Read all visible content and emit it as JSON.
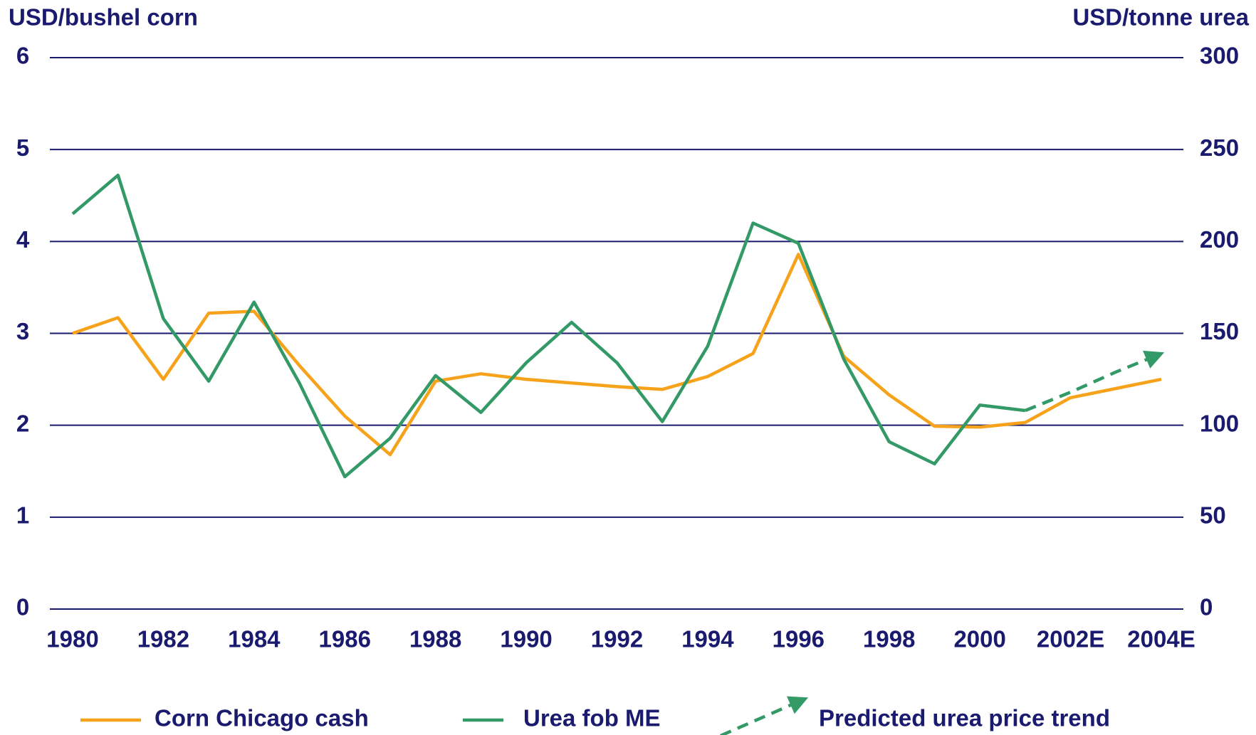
{
  "chart_data": {
    "type": "line",
    "y_label": "USD/bushel corn",
    "y2_label": "USD/tonne urea",
    "categories": [
      "1980",
      null,
      "1982",
      null,
      "1984",
      null,
      "1986",
      null,
      "1988",
      null,
      "1990",
      null,
      "1992",
      null,
      "1994",
      null,
      "1996",
      null,
      "1998",
      null,
      "2000",
      null,
      "2002E",
      null,
      "2004E"
    ],
    "series": [
      {
        "name": "Corn Chicago cash",
        "color": "#f7a21b",
        "values": [
          3.0,
          3.17,
          2.5,
          3.22,
          3.24,
          2.65,
          2.1,
          1.68,
          2.48,
          2.56,
          2.5,
          2.46,
          2.42,
          2.39,
          2.53,
          2.78,
          3.86,
          2.75,
          2.33,
          1.99,
          1.98,
          2.03,
          2.3,
          2.4,
          2.5
        ]
      },
      {
        "name": "Urea fob ME",
        "color": "#339966",
        "axis": "y2",
        "values": [
          215,
          236,
          158,
          124,
          167,
          123,
          72,
          93,
          127,
          107,
          134,
          156,
          134,
          102,
          143,
          210,
          199,
          136,
          91,
          79,
          111,
          108,
          null,
          null,
          null
        ]
      },
      {
        "name": "Predicted urea price trend",
        "color": "#339966",
        "axis": "y2",
        "dashed": true,
        "arrow": true,
        "values": [
          null,
          null,
          null,
          null,
          null,
          null,
          null,
          null,
          null,
          null,
          null,
          null,
          null,
          null,
          null,
          null,
          null,
          null,
          null,
          null,
          null,
          108,
          118,
          129,
          139
        ]
      }
    ],
    "ylim": [
      0,
      6
    ],
    "yticks": [
      0,
      1,
      2,
      3,
      4,
      5,
      6
    ],
    "y2lim": [
      0,
      300
    ],
    "y2ticks": [
      0,
      50,
      100,
      150,
      200,
      250,
      300
    ],
    "grid": true,
    "legend": "bottom"
  }
}
